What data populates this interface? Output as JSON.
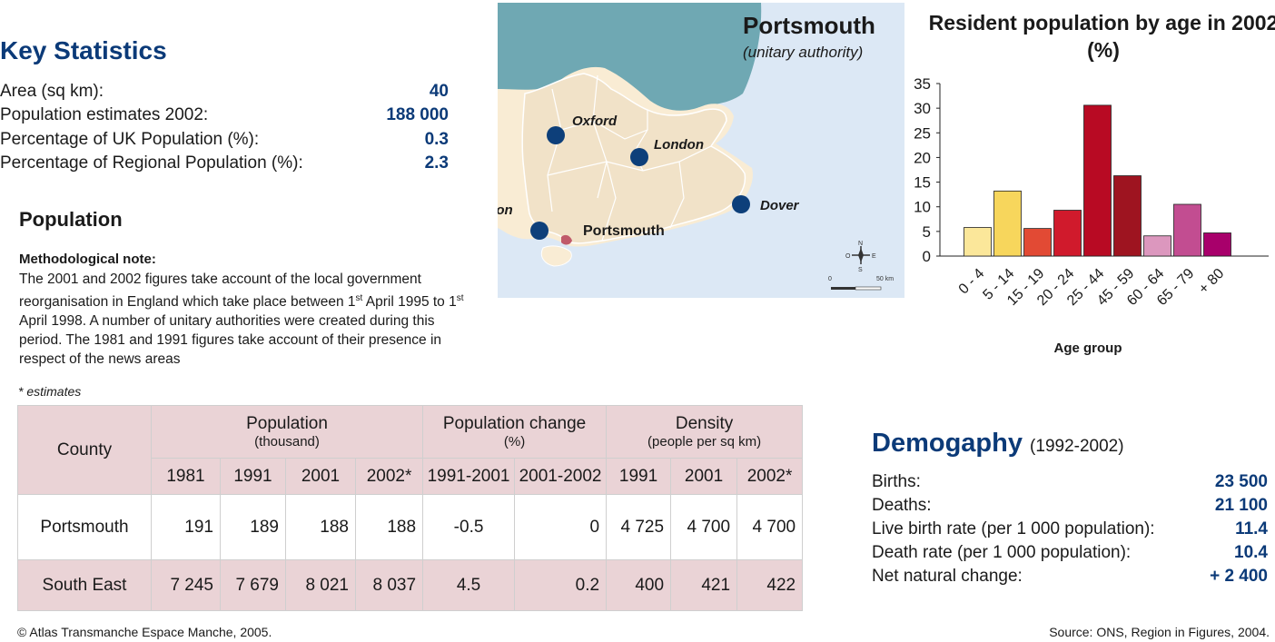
{
  "key_statistics": {
    "title": "Key Statistics",
    "rows": [
      {
        "label": "Area (sq km):",
        "value": "40"
      },
      {
        "label": "Population estimates 2002:",
        "value": "188 000"
      },
      {
        "label": "Percentage of UK Population (%):",
        "value": "0.3"
      },
      {
        "label": "Percentage of Regional Population (%):",
        "value": "2.3"
      }
    ]
  },
  "population": {
    "title": "Population",
    "note_title": "Methodological note:",
    "note_part1": "The 2001 and 2002 figures take account of the local government reorganisation in England which take place between 1",
    "sup1": "st",
    "note_part2": " April 1995 to 1",
    "sup2": "st",
    "note_part3": " April 1998. A number of unitary authorities were created during this period. The 1981 and 1991 figures take account of their presence in respect of the news areas",
    "estimates_note": "* estimates"
  },
  "table": {
    "county_header": "County",
    "groups": [
      {
        "title": "Population",
        "subtitle": "(thousand)"
      },
      {
        "title": "Population change",
        "subtitle": "(%)"
      },
      {
        "title": "Density",
        "subtitle": "(people per sq km)"
      }
    ],
    "subheaders": [
      "1981",
      "1991",
      "2001",
      "2002*",
      "1991-2001",
      "2001-2002",
      "1991",
      "2001",
      "2002*"
    ],
    "rows": [
      {
        "county": "Portsmouth",
        "values": [
          "191",
          "189",
          "188",
          "188",
          "-0.5",
          "0",
          "4 725",
          "4 700",
          "4 700"
        ]
      },
      {
        "county": "South East",
        "values": [
          "7 245",
          "7 679",
          "8 021",
          "8 037",
          "4.5",
          "0.2",
          "400",
          "421",
          "422"
        ]
      }
    ]
  },
  "map": {
    "title": "Portsmouth",
    "subtitle": "(unitary authority)",
    "cities": [
      "Oxford",
      "London",
      "Southampton",
      "Portsmouth",
      "Dover"
    ],
    "scale_start": "0",
    "scale_end": "50 km",
    "compass": [
      "N",
      "E",
      "S",
      "O"
    ],
    "colors": {
      "sea": "#dce8f5",
      "channel_sea": "#6fa8b3",
      "land": "#f9ecd4",
      "region": "#f1e2c8",
      "city": "#0d3f7a",
      "portsmouth": "#c05a6a"
    }
  },
  "chart_data": {
    "type": "bar",
    "title": "Resident population by age in 2002 (%)",
    "xlabel": "Age group",
    "ylabel": "",
    "ylim": [
      0,
      35
    ],
    "yticks": [
      "0",
      "5",
      "10",
      "15",
      "20",
      "25",
      "30",
      "35"
    ],
    "categories": [
      "0 - 4",
      "5 - 14",
      "15 - 19",
      "20 - 24",
      "25 - 44",
      "45 - 59",
      "60 - 64",
      "65 - 79",
      "+ 80"
    ],
    "values": [
      5.8,
      13.2,
      5.6,
      9.3,
      30.6,
      16.3,
      4.1,
      10.5,
      4.7
    ],
    "colors": [
      "#fbe79a",
      "#f7d65c",
      "#e24a34",
      "#d01a2c",
      "#b80a23",
      "#9e1420",
      "#dc97be",
      "#c24d91",
      "#a8006b"
    ],
    "grid": false
  },
  "demography": {
    "title": "Demogaphy",
    "subtitle": "(1992-2002)",
    "rows": [
      {
        "label": "Births:",
        "value": "23 500"
      },
      {
        "label": "Deaths:",
        "value": "21 100"
      },
      {
        "label": "Live birth rate (per 1 000 population):",
        "value": "11.4"
      },
      {
        "label": "Death rate (per 1 000 population):",
        "value": "10.4"
      },
      {
        "label": "Net natural change:",
        "value": "+ 2 400"
      }
    ]
  },
  "footer": {
    "copyright": "© Atlas Transmanche Espace Manche, 2005.",
    "source": "Source: ONS, Region in Figures, 2004."
  }
}
